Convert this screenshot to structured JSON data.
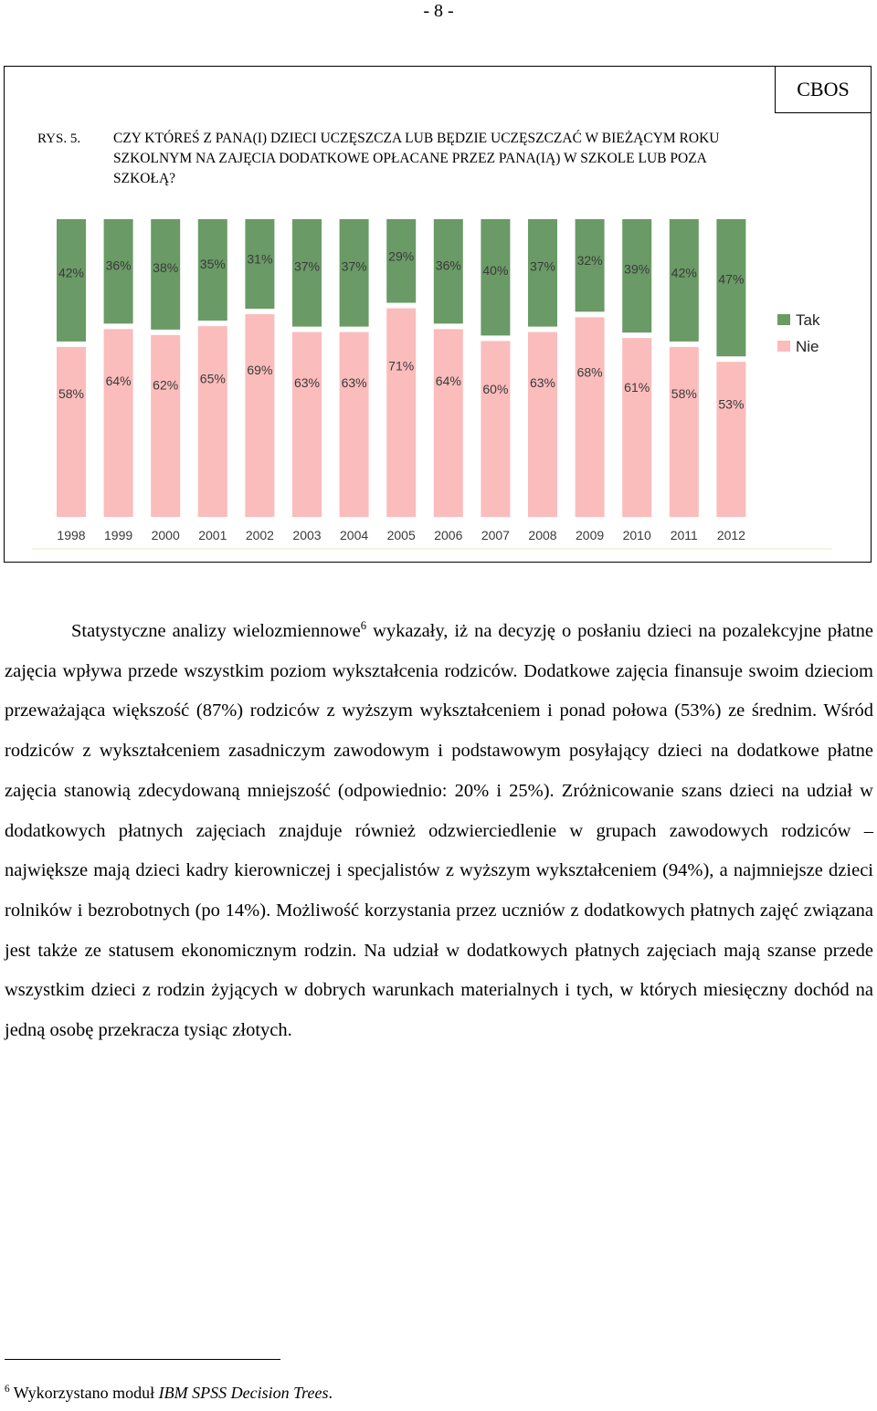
{
  "page_number": "- 8 -",
  "figure": {
    "source": "CBOS",
    "number": "RYS. 5.",
    "title": "CZY KTÓREŚ Z PANA(I) DZIECI UCZĘSZCZA LUB BĘDZIE UCZĘSZCZAĆ W BIEŻĄCYM ROKU SZKOLNYM NA ZAJĘCIA DODATKOWE OPŁACANE PRZEZ PANA(IĄ) W SZKOLE LUB POZA SZKOŁĄ?"
  },
  "chart_data": {
    "type": "bar",
    "stacked": true,
    "percent_stacked": true,
    "categories": [
      "1998",
      "1999",
      "2000",
      "2001",
      "2002",
      "2003",
      "2004",
      "2005",
      "2006",
      "2007",
      "2008",
      "2009",
      "2010",
      "2011",
      "2012"
    ],
    "series": [
      {
        "name": "Tak",
        "color": "#6a9a66",
        "values": [
          42,
          36,
          38,
          35,
          31,
          37,
          37,
          29,
          36,
          40,
          37,
          32,
          39,
          42,
          47
        ],
        "labels": [
          "42%",
          "36%",
          "38%",
          "35%",
          "31%",
          "37%",
          "37%",
          "29%",
          "36%",
          "40%",
          "37%",
          "32%",
          "39%",
          "42%",
          "47%"
        ]
      },
      {
        "name": "Nie",
        "color": "#fbbcbc",
        "values": [
          58,
          64,
          62,
          65,
          69,
          63,
          63,
          71,
          64,
          60,
          63,
          68,
          61,
          58,
          53
        ],
        "labels": [
          "58%",
          "64%",
          "62%",
          "65%",
          "69%",
          "63%",
          "63%",
          "71%",
          "64%",
          "60%",
          "63%",
          "68%",
          "61%",
          "58%",
          "53%"
        ]
      }
    ],
    "title": "",
    "xlabel": "",
    "ylabel": "",
    "ylim": [
      0,
      100
    ],
    "legend_position": "right",
    "grid": false
  },
  "body": {
    "p1_before_sup": "Statystyczne analizy wielozmiennowe",
    "p1_sup": "6",
    "p1_after_sup": " wykazały, iż na decyzję o posłaniu dzieci na pozalekcyjne płatne zajęcia wpływa przede wszystkim poziom wykształcenia rodziców. Dodatkowe zajęcia finansuje swoim dzieciom przeważająca większość (87%) rodziców z wyższym wykształceniem i ponad połowa (53%) ze średnim. Wśród rodziców z wykształceniem zasadniczym zawodowym i podstawowym posyłający dzieci na dodatkowe płatne zajęcia stanowią zdecydowaną mniejszość (odpowiednio: 20% i 25%). Zróżnicowanie szans dzieci na udział w dodatkowych płatnych zajęciach znajduje również odzwierciedlenie w grupach zawodowych rodziców – największe mają dzieci kadry kierowniczej i specjalistów z wyższym wykształceniem (94%), a najmniejsze dzieci rolników i bezrobotnych (po 14%). Możliwość korzystania przez uczniów z dodatkowych płatnych zajęć związana jest także ze statusem ekonomicznym rodzin. Na udział w dodatkowych płatnych zajęciach mają szanse przede wszystkim dzieci z rodzin żyjących w dobrych warunkach materialnych i tych, w których miesięczny dochód na jedną osobę przekracza tysiąc złotych."
  },
  "footnote": {
    "mark": "6",
    "text_before": " Wykorzystano moduł ",
    "text_italic": "IBM SPSS Decision Trees",
    "text_after": "."
  }
}
